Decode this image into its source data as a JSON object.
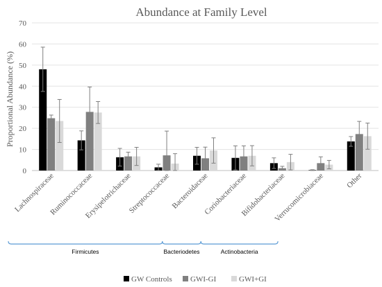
{
  "chart_data": {
    "type": "bar",
    "title": "Abundance at Family Level",
    "ylabel": "Proportional Abundance (%)",
    "xlabel": "",
    "ylim": [
      0,
      70
    ],
    "yticks": [
      0,
      10,
      20,
      30,
      40,
      50,
      60,
      70
    ],
    "grid": true,
    "legend_position": "bottom",
    "categories": [
      "Lachnospiraceae",
      "Ruminococcaceae",
      "Erysipelotrichaceae",
      "Streptococcaceae",
      "Bacteroidaceae",
      "Coriobacteriaceae",
      "Bifidobacteriaceae",
      "Verrucomicrobiaceae",
      "Other"
    ],
    "series": [
      {
        "name": "GW Controls",
        "color": "#000000",
        "values": [
          48.0,
          14.3,
          6.3,
          1.5,
          7.0,
          6.0,
          3.5,
          0.2,
          13.8
        ],
        "error": [
          10.5,
          4.5,
          4.2,
          1.5,
          4.0,
          5.7,
          2.5,
          0.2,
          2.3
        ]
      },
      {
        "name": "GWI-GI",
        "color": "#808080",
        "values": [
          24.8,
          27.8,
          6.7,
          7.2,
          5.8,
          6.7,
          1.1,
          3.5,
          17.3
        ],
        "error": [
          1.5,
          11.8,
          2.0,
          11.5,
          5.3,
          5.0,
          0.9,
          3.0,
          6.0
        ]
      },
      {
        "name": "GWI+GI",
        "color": "#d9d9d9",
        "values": [
          23.5,
          27.5,
          6.7,
          3.3,
          9.5,
          7.0,
          4.0,
          2.8,
          16.3
        ],
        "error": [
          10.2,
          5.2,
          4.3,
          4.7,
          6.0,
          4.8,
          3.7,
          2.0,
          6.2
        ]
      }
    ],
    "phylum_groups": [
      {
        "label": "Firmicutes",
        "from": 0,
        "to": 3
      },
      {
        "label": "Bacteriodetes",
        "from": 4,
        "to": 4
      },
      {
        "label": "Actinobacteria",
        "from": 5,
        "to": 6
      }
    ]
  }
}
